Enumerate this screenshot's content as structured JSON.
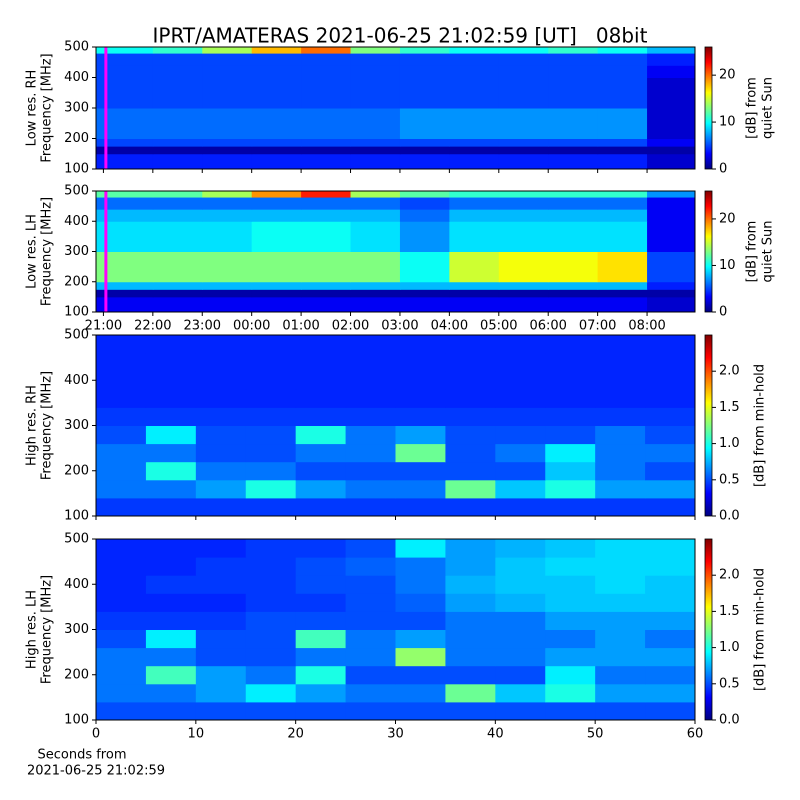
{
  "chart_data": [
    {
      "type": "heatmap",
      "title": "IPRT/AMATERAS 2021-06-25 21:02:59 [UT]   08bit",
      "ylabel": [
        "Low res. RH",
        "Frequency [MHz]"
      ],
      "colorbar_label": [
        "[dB] from",
        "quiet Sun"
      ],
      "xlim": [
        20.85,
        32.97
      ],
      "xticks": [
        21,
        22,
        23,
        24,
        25,
        26,
        27,
        28,
        29,
        30,
        31,
        32
      ],
      "xtick_labels": false,
      "ylim": [
        100,
        500
      ],
      "yticks": [
        100,
        200,
        300,
        400,
        500
      ],
      "clim": [
        0,
        26
      ],
      "cticks": [
        0,
        10,
        20
      ],
      "colormap": "jet",
      "marker_x": 21.05,
      "marker_color": "#ff00ff",
      "x_edges": [
        20.85,
        22,
        23,
        24,
        25,
        26,
        27,
        28,
        29,
        30,
        31,
        32,
        32.97
      ],
      "y_edges": [
        100,
        150,
        175,
        200,
        300,
        400,
        440,
        480,
        500
      ],
      "z": [
        [
          4,
          4,
          4,
          4,
          4,
          4,
          4,
          4,
          4,
          4,
          4,
          2
        ],
        [
          1,
          1,
          1,
          1,
          1,
          1,
          1,
          1,
          1,
          1,
          1,
          1
        ],
        [
          5,
          5,
          5,
          5,
          5,
          5,
          5,
          5,
          5,
          5,
          5,
          3
        ],
        [
          6,
          6,
          6,
          6,
          6,
          6,
          7,
          7,
          7,
          7,
          7,
          2
        ],
        [
          5,
          5,
          5,
          5,
          5,
          5,
          5,
          5,
          5,
          5,
          5,
          2
        ],
        [
          5,
          5,
          5,
          5,
          5,
          5,
          5,
          5,
          5,
          5,
          5,
          3
        ],
        [
          5,
          5,
          5,
          5,
          5,
          5,
          5,
          5,
          5,
          5,
          5,
          4
        ],
        [
          10,
          11,
          14,
          18,
          20,
          13,
          11,
          10,
          10,
          11,
          10,
          8
        ]
      ]
    },
    {
      "type": "heatmap",
      "ylabel": [
        "Low res. LH",
        "Frequency [MHz]"
      ],
      "colorbar_label": [
        "[dB] from",
        "quiet Sun"
      ],
      "xlim": [
        20.85,
        32.97
      ],
      "xticks": [
        {
          "value": 21,
          "label": "21:00"
        },
        {
          "value": 22,
          "label": "22:00"
        },
        {
          "value": 23,
          "label": "23:00"
        },
        {
          "value": 24,
          "label": "00:00"
        },
        {
          "value": 25,
          "label": "01:00"
        },
        {
          "value": 26,
          "label": "02:00"
        },
        {
          "value": 27,
          "label": "03:00"
        },
        {
          "value": 28,
          "label": "04:00"
        },
        {
          "value": 29,
          "label": "05:00"
        },
        {
          "value": 30,
          "label": "06:00"
        },
        {
          "value": 31,
          "label": "07:00"
        },
        {
          "value": 32,
          "label": "08:00"
        }
      ],
      "ylim": [
        100,
        500
      ],
      "yticks": [
        100,
        200,
        300,
        400,
        500
      ],
      "clim": [
        0,
        26
      ],
      "cticks": [
        0,
        10,
        20
      ],
      "colormap": "jet",
      "marker_x": 21.05,
      "marker_color": "#ff00ff",
      "x_edges": [
        20.85,
        22,
        23,
        24,
        25,
        26,
        27,
        28,
        29,
        30,
        31,
        32,
        32.97
      ],
      "y_edges": [
        100,
        150,
        175,
        200,
        300,
        400,
        440,
        480,
        500
      ],
      "z": [
        [
          3,
          3,
          3,
          3,
          3,
          3,
          3,
          3,
          3,
          3,
          3,
          2
        ],
        [
          1,
          1,
          1,
          1,
          1,
          1,
          1,
          1,
          1,
          1,
          1,
          1
        ],
        [
          8,
          8,
          8,
          8,
          8,
          8,
          8,
          8,
          8,
          8,
          8,
          4
        ],
        [
          13,
          13,
          13,
          13,
          13,
          13,
          10,
          15,
          16,
          16,
          17,
          5
        ],
        [
          9,
          9,
          9,
          10,
          10,
          9,
          7,
          9,
          9,
          9,
          9,
          3
        ],
        [
          8,
          8,
          8,
          8,
          8,
          8,
          6,
          8,
          8,
          8,
          8,
          3
        ],
        [
          6,
          6,
          6,
          6,
          6,
          6,
          5,
          6,
          6,
          6,
          6,
          3
        ],
        [
          12,
          12,
          14,
          19,
          22,
          14,
          12,
          11,
          11,
          11,
          11,
          7
        ]
      ]
    },
    {
      "type": "heatmap",
      "ylabel": [
        "High res. RH",
        "Frequency [MHz]"
      ],
      "colorbar_label": [
        "[dB] from min-hold"
      ],
      "xlim": [
        0,
        60
      ],
      "xticks": [
        0,
        10,
        20,
        30,
        40,
        50,
        60
      ],
      "xtick_labels": false,
      "ylim": [
        100,
        500
      ],
      "yticks": [
        100,
        200,
        300,
        400,
        500
      ],
      "clim": [
        0,
        2.5
      ],
      "cticks": [
        {
          "value": 0,
          "label": "0.0"
        },
        {
          "value": 0.5,
          "label": "0.5"
        },
        {
          "value": 1,
          "label": "1.0"
        },
        {
          "value": 1.5,
          "label": "1.5"
        },
        {
          "value": 2,
          "label": "2.0"
        }
      ],
      "colormap": "jet",
      "x_edges": [
        0,
        5,
        10,
        15,
        20,
        25,
        30,
        35,
        40,
        45,
        50,
        55,
        60
      ],
      "y_edges": [
        100,
        140,
        180,
        220,
        260,
        300,
        340,
        380,
        420,
        460,
        500
      ],
      "z": [
        [
          0.45,
          0.45,
          0.45,
          0.45,
          0.45,
          0.45,
          0.45,
          0.45,
          0.45,
          0.45,
          0.45,
          0.45
        ],
        [
          0.6,
          0.6,
          0.7,
          1.0,
          0.7,
          0.6,
          0.6,
          1.2,
          0.8,
          1.0,
          0.7,
          0.7
        ],
        [
          0.6,
          1.0,
          0.6,
          0.6,
          0.5,
          0.5,
          0.5,
          0.5,
          0.5,
          0.8,
          0.6,
          0.5
        ],
        [
          0.6,
          0.6,
          0.5,
          0.5,
          0.6,
          0.6,
          1.2,
          0.5,
          0.6,
          0.9,
          0.6,
          0.6
        ],
        [
          0.5,
          0.9,
          0.5,
          0.5,
          1.0,
          0.6,
          0.7,
          0.5,
          0.5,
          0.5,
          0.6,
          0.5
        ],
        [
          0.45,
          0.45,
          0.45,
          0.45,
          0.45,
          0.45,
          0.45,
          0.45,
          0.45,
          0.45,
          0.45,
          0.45
        ],
        [
          0.4,
          0.4,
          0.4,
          0.4,
          0.4,
          0.4,
          0.4,
          0.4,
          0.4,
          0.4,
          0.4,
          0.4
        ],
        [
          0.4,
          0.4,
          0.4,
          0.4,
          0.4,
          0.4,
          0.4,
          0.4,
          0.4,
          0.4,
          0.4,
          0.4
        ],
        [
          0.4,
          0.4,
          0.4,
          0.4,
          0.4,
          0.4,
          0.4,
          0.4,
          0.4,
          0.4,
          0.4,
          0.4
        ],
        [
          0.4,
          0.4,
          0.4,
          0.4,
          0.4,
          0.4,
          0.4,
          0.4,
          0.4,
          0.4,
          0.4,
          0.4
        ]
      ]
    },
    {
      "type": "heatmap",
      "ylabel": [
        "High res. LH",
        "Frequency [MHz]"
      ],
      "colorbar_label": [
        "[dB] from min-hold"
      ],
      "xlabel": [
        "Seconds from",
        "2021-06-25 21:02:59"
      ],
      "xlim": [
        0,
        60
      ],
      "xticks": [
        0,
        10,
        20,
        30,
        40,
        50,
        60
      ],
      "ylim": [
        100,
        500
      ],
      "yticks": [
        100,
        200,
        300,
        400,
        500
      ],
      "clim": [
        0,
        2.5
      ],
      "cticks": [
        {
          "value": 0,
          "label": "0.0"
        },
        {
          "value": 0.5,
          "label": "0.5"
        },
        {
          "value": 1,
          "label": "1.0"
        },
        {
          "value": 1.5,
          "label": "1.5"
        },
        {
          "value": 2,
          "label": "2.0"
        }
      ],
      "colormap": "jet",
      "x_edges": [
        0,
        5,
        10,
        15,
        20,
        25,
        30,
        35,
        40,
        45,
        50,
        55,
        60
      ],
      "y_edges": [
        100,
        140,
        180,
        220,
        260,
        300,
        340,
        380,
        420,
        460,
        500
      ],
      "z": [
        [
          0.5,
          0.5,
          0.5,
          0.5,
          0.5,
          0.5,
          0.5,
          0.5,
          0.5,
          0.5,
          0.5,
          0.5
        ],
        [
          0.6,
          0.6,
          0.7,
          0.9,
          0.7,
          0.6,
          0.6,
          1.2,
          0.8,
          1.0,
          0.7,
          0.7
        ],
        [
          0.6,
          1.1,
          0.7,
          0.6,
          1.0,
          0.5,
          0.5,
          0.5,
          0.5,
          0.9,
          0.6,
          0.6
        ],
        [
          0.6,
          0.6,
          0.5,
          0.5,
          0.6,
          0.6,
          1.3,
          0.6,
          0.6,
          0.7,
          0.7,
          0.7
        ],
        [
          0.5,
          0.9,
          0.5,
          0.5,
          1.1,
          0.6,
          0.7,
          0.6,
          0.6,
          0.6,
          0.7,
          0.6
        ],
        [
          0.45,
          0.45,
          0.45,
          0.5,
          0.5,
          0.5,
          0.5,
          0.6,
          0.6,
          0.7,
          0.7,
          0.7
        ],
        [
          0.4,
          0.4,
          0.4,
          0.45,
          0.45,
          0.5,
          0.55,
          0.7,
          0.75,
          0.8,
          0.8,
          0.8
        ],
        [
          0.4,
          0.45,
          0.45,
          0.45,
          0.5,
          0.5,
          0.6,
          0.75,
          0.8,
          0.8,
          0.85,
          0.8
        ],
        [
          0.4,
          0.4,
          0.45,
          0.45,
          0.5,
          0.55,
          0.6,
          0.7,
          0.8,
          0.85,
          0.85,
          0.85
        ],
        [
          0.4,
          0.4,
          0.4,
          0.45,
          0.45,
          0.5,
          0.9,
          0.7,
          0.75,
          0.8,
          0.85,
          0.85
        ]
      ]
    }
  ]
}
